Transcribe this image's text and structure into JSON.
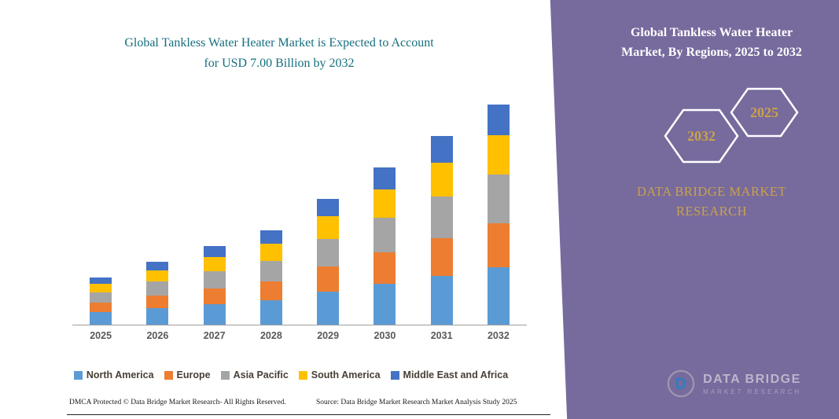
{
  "left_panel": {
    "title_line1": "Global Tankless Water Heater Market is Expected to Account",
    "title_line2": "for USD 7.00 Billion by 2032",
    "footer_left": "DMCA Protected © Data Bridge Market Research-  All Rights Reserved.",
    "footer_right": "Source: Data Bridge Market Research  Market Analysis Study 2025"
  },
  "right_panel": {
    "title_line1": "Global Tankless Water Heater",
    "title_line2": "Market, By Regions, 2025 to 2032",
    "hexagon_back_year": "2032",
    "hexagon_front_year": "2025",
    "brand_line1": "DATA BRIDGE MARKET",
    "brand_line2": "RESEARCH",
    "logo_wordmark": "DATA BRIDGE",
    "logo_subtext": "MARKET RESEARCH",
    "colors": {
      "background": "#776a9d",
      "accent_gold": "#c9a24b",
      "title_teal": "#156e7f"
    }
  },
  "chart_data": {
    "type": "bar",
    "stacked": true,
    "title": "Global Tankless Water Heater Market is Expected to Account for USD 7.00 Billion by 2032",
    "unit": "USD Billion",
    "categories": [
      "2025",
      "2026",
      "2027",
      "2028",
      "2029",
      "2030",
      "2031",
      "2032"
    ],
    "series": [
      {
        "name": "North America",
        "color": "#5b9bd5",
        "values": [
          0.4,
          0.52,
          0.65,
          0.78,
          1.04,
          1.3,
          1.56,
          1.82
        ]
      },
      {
        "name": "Europe",
        "color": "#ed7d31",
        "values": [
          0.3,
          0.4,
          0.5,
          0.6,
          0.8,
          1.0,
          1.2,
          1.4
        ]
      },
      {
        "name": "Asia Pacific",
        "color": "#a5a5a5",
        "values": [
          0.33,
          0.44,
          0.55,
          0.66,
          0.88,
          1.1,
          1.32,
          1.54
        ]
      },
      {
        "name": "South America",
        "color": "#ffc000",
        "values": [
          0.27,
          0.36,
          0.45,
          0.54,
          0.72,
          0.9,
          1.08,
          1.26
        ]
      },
      {
        "name": "Middle East and Africa",
        "color": "#4472c4",
        "values": [
          0.2,
          0.28,
          0.35,
          0.42,
          0.56,
          0.7,
          0.84,
          0.98
        ]
      }
    ],
    "totals": [
      1.5,
      2.0,
      2.5,
      3.0,
      4.0,
      5.0,
      6.0,
      7.0
    ],
    "xlabel": "",
    "ylabel": "",
    "y_axis_visible": false,
    "gridlines": false,
    "legend_position": "bottom"
  }
}
